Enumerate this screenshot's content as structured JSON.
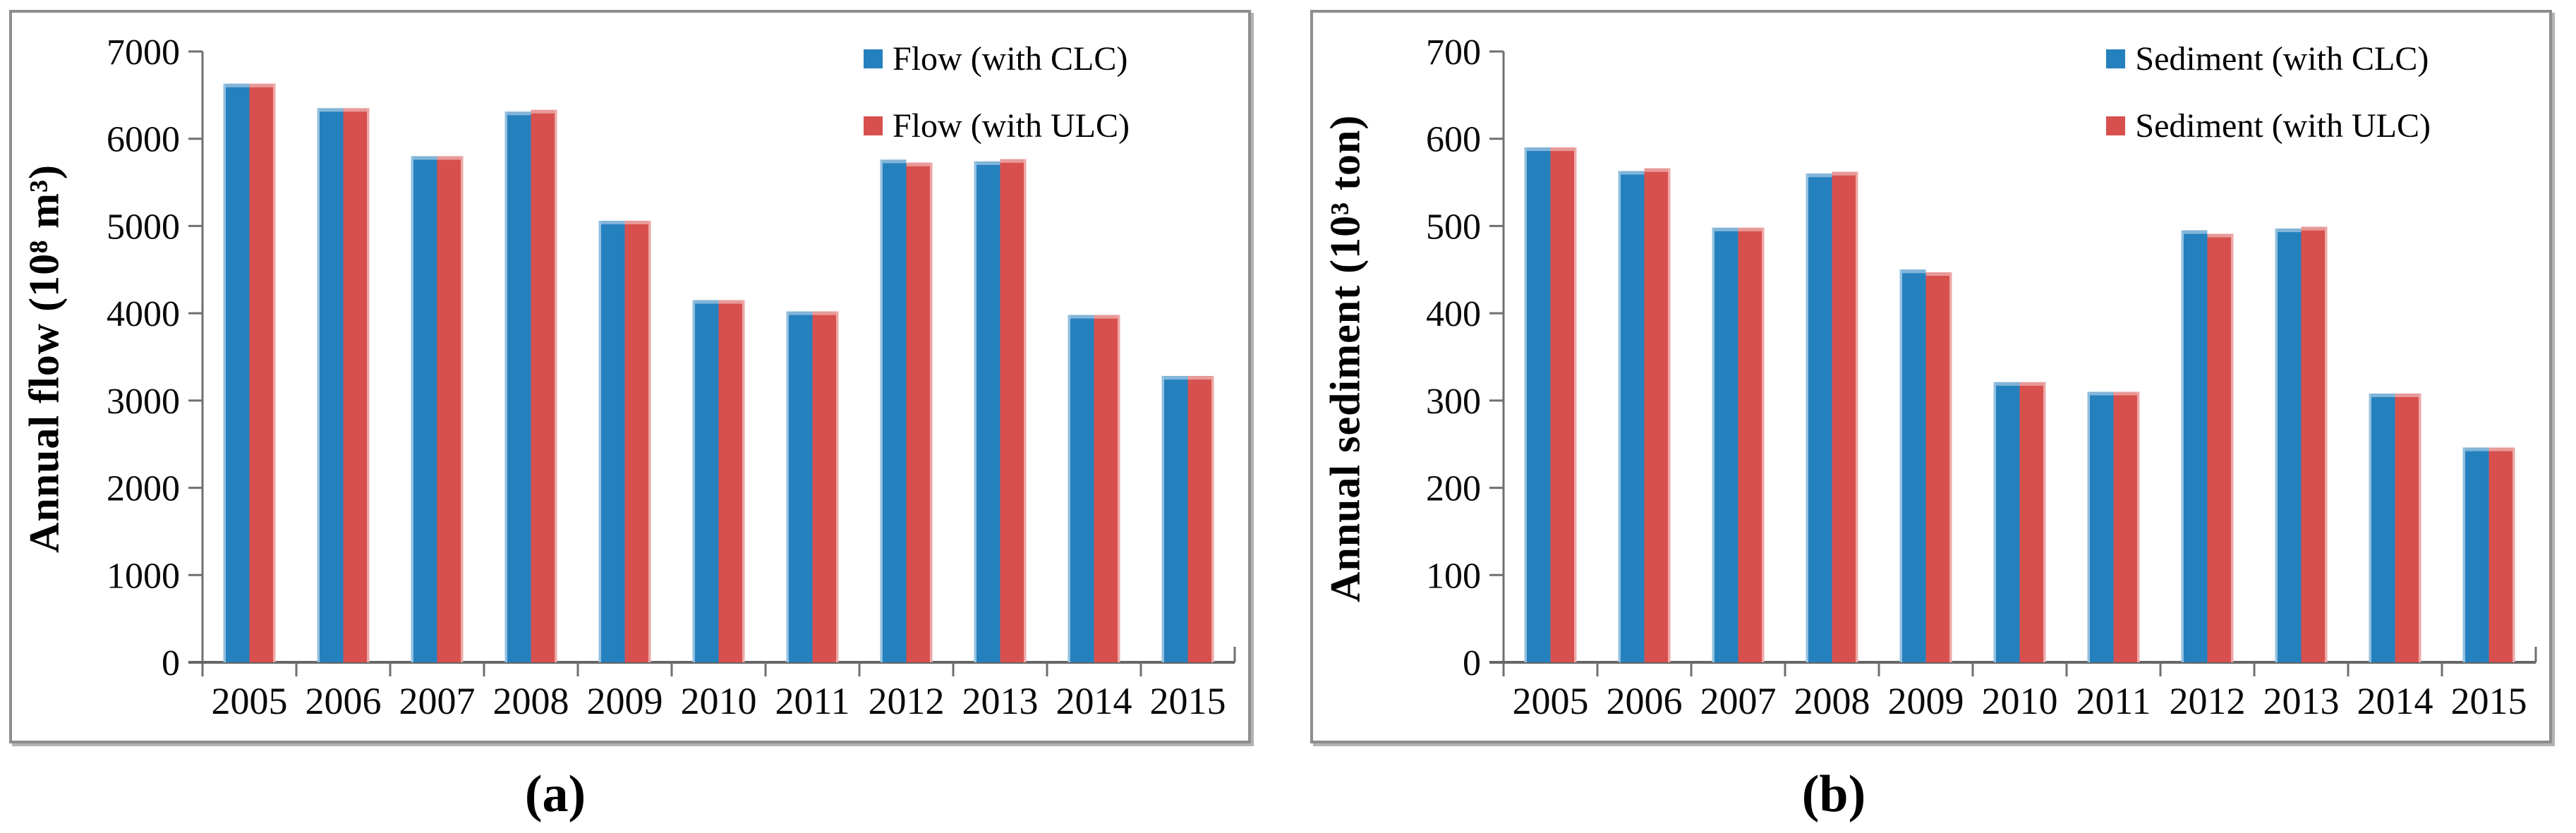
{
  "chart_data": [
    {
      "type": "bar",
      "panel_label": "(a)",
      "title": "",
      "ylabel": "Annual flow (10⁸ m³)",
      "xlabel": "",
      "categories": [
        "2005",
        "2006",
        "2007",
        "2008",
        "2009",
        "2010",
        "2011",
        "2012",
        "2013",
        "2014",
        "2015"
      ],
      "series": [
        {
          "name": "Flow (with CLC)",
          "color": "#2580BE",
          "values": [
            6630,
            6350,
            5800,
            6310,
            5060,
            4150,
            4020,
            5760,
            5740,
            3980,
            3280
          ]
        },
        {
          "name": "Flow (with ULC)",
          "color": "#D8504E",
          "values": [
            6630,
            6350,
            5800,
            6330,
            5060,
            4150,
            4020,
            5725,
            5765,
            3980,
            3280
          ]
        }
      ],
      "ylim": [
        0,
        7000
      ],
      "ytick_step": 1000,
      "ytick_labels": [
        "0",
        "1000",
        "2000",
        "3000",
        "4000",
        "5000",
        "6000",
        "7000"
      ],
      "grid": false,
      "legend_position": "top-right"
    },
    {
      "type": "bar",
      "panel_label": "(b)",
      "title": "",
      "ylabel": "Annual sediment (10³ ton)",
      "xlabel": "",
      "categories": [
        "2005",
        "2006",
        "2007",
        "2008",
        "2009",
        "2010",
        "2011",
        "2012",
        "2013",
        "2014",
        "2015"
      ],
      "series": [
        {
          "name": "Sediment (with CLC)",
          "color": "#2580BE",
          "values": [
            590,
            563,
            498,
            560,
            450,
            321,
            310,
            495,
            497,
            308,
            246
          ]
        },
        {
          "name": "Sediment (with ULC)",
          "color": "#D8504E",
          "values": [
            590,
            566,
            498,
            562,
            447,
            321,
            310,
            491,
            499,
            308,
            246
          ]
        }
      ],
      "ylim": [
        0,
        700
      ],
      "ytick_step": 100,
      "ytick_labels": [
        "0",
        "100",
        "200",
        "300",
        "400",
        "500",
        "600",
        "700"
      ],
      "grid": false,
      "legend_position": "top-right"
    }
  ]
}
